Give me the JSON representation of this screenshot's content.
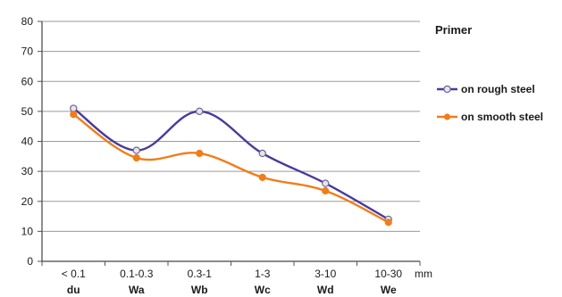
{
  "chart_data": {
    "type": "line",
    "categories": [
      "< 0.1",
      "0.1-0.3",
      "0.3-1",
      "1-3",
      "3-10",
      "10-30"
    ],
    "category_codes": [
      "du",
      "Wa",
      "Wb",
      "Wc",
      "Wd",
      "We"
    ],
    "x_unit": "mm",
    "ylim": [
      0,
      80
    ],
    "yticks": [
      0,
      10,
      20,
      30,
      40,
      50,
      60,
      70,
      80
    ],
    "grid": true,
    "legend_title": "Primer",
    "legend_position": "right",
    "series": [
      {
        "name": "on rough steel",
        "color": "#4a3a9c",
        "marker": "open-circle",
        "values": [
          51,
          37,
          50,
          36,
          26,
          14
        ]
      },
      {
        "name": "on smooth steel",
        "color": "#f07d1a",
        "marker": "filled-circle",
        "values": [
          49,
          34.5,
          36,
          28,
          23.5,
          13
        ]
      }
    ]
  }
}
